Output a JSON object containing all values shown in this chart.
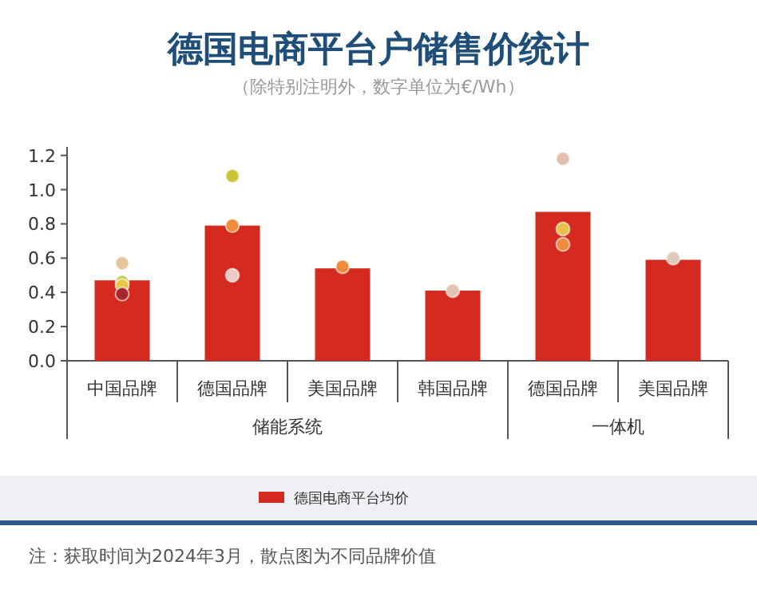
{
  "chart_data": {
    "type": "bar",
    "title": "德国电商平台户储售价统计",
    "subtitle": "（除特别注明外，数字单位为€/Wh）",
    "categories": [
      "中国品牌",
      "德国品牌",
      "美国品牌",
      "韩国品牌",
      "德国品牌",
      "美国品牌"
    ],
    "series": [
      {
        "name": "德国电商平台均价",
        "color": "#d42a1f",
        "values": [
          0.47,
          0.79,
          0.54,
          0.41,
          0.87,
          0.59
        ]
      },
      {
        "type": "scatter",
        "colors": [
          "#e6c59a",
          "#c8c43a",
          "#f08a3c",
          "#e2c2b0",
          "#e2c0b0",
          "#e2c8b8"
        ],
        "values": [
          0.57,
          1.08,
          0.55,
          0.41,
          1.18,
          0.6
        ]
      },
      {
        "type": "scatter",
        "colors": [
          "#b9c94a",
          "#f08a3c",
          null,
          null,
          "#e8c04a",
          null
        ],
        "values": [
          0.46,
          0.79,
          null,
          null,
          0.77,
          null
        ]
      },
      {
        "type": "scatter",
        "colors": [
          "#e8c84a",
          "#f0c8c8",
          null,
          null,
          "#f08a3c",
          null
        ],
        "values": [
          0.44,
          0.5,
          null,
          null,
          0.68,
          null
        ]
      },
      {
        "type": "scatter",
        "colors": [
          "#a8262e",
          null,
          null,
          null,
          null,
          null
        ],
        "values": [
          0.39,
          null,
          null,
          null,
          null,
          null
        ]
      }
    ],
    "ylim": [
      0,
      1.25
    ],
    "yticks": [
      {
        "value": 0,
        "label": "0.0"
      },
      0.2,
      0.4,
      0.6,
      0.8,
      {
        "value": 1,
        "label": "1.0"
      },
      1.2
    ],
    "legend": "bottom",
    "annotations": [
      "储能系统",
      "一体机",
      "注：获取时间为2024年3月，散点图为不同品牌价值"
    ]
  }
}
